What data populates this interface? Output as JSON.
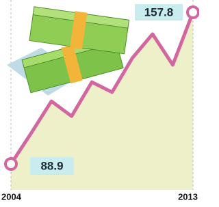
{
  "chart_data": {
    "type": "line",
    "categories": [
      "2004",
      null,
      null,
      null,
      null,
      null,
      null,
      null,
      null,
      "2013"
    ],
    "series": [
      {
        "color": "#d2679f",
        "values": [
          88.9,
          102.9,
          117.4,
          110.6,
          126.1,
          121.5,
          137.0,
          147.9,
          133.9,
          157.8
        ]
      }
    ],
    "fill": "#eef0c9",
    "label_color": "#c9ecee"
  }
}
